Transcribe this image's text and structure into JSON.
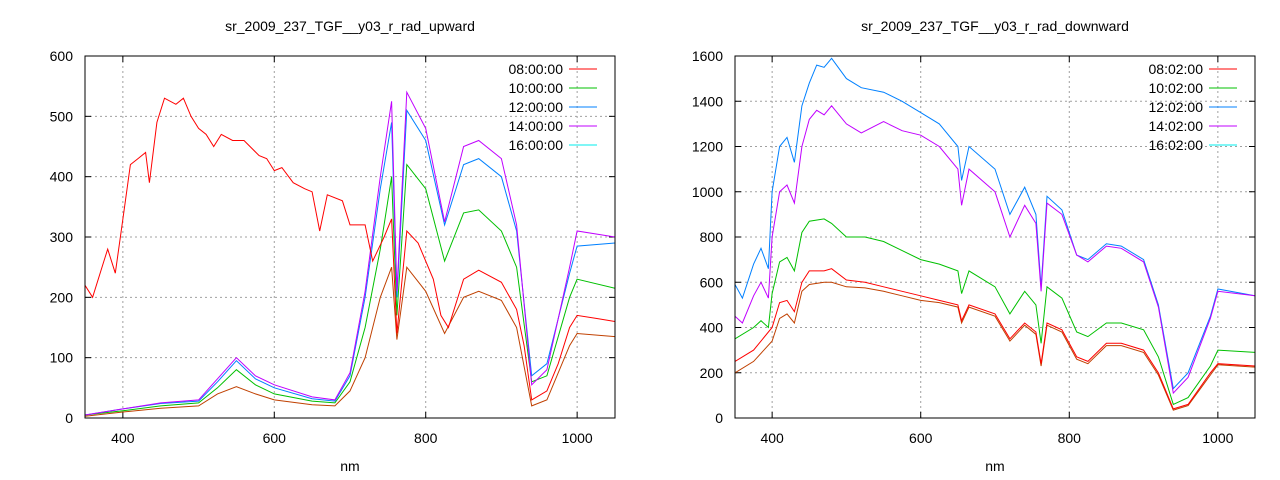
{
  "chart_data": [
    {
      "type": "line",
      "title": "sr_2009_237_TGF__y03_r_rad_upward",
      "xlabel": "nm",
      "ylabel": "",
      "xlim": [
        350,
        1050
      ],
      "ylim": [
        0,
        600
      ],
      "xticks": [
        400,
        600,
        800,
        1000
      ],
      "yticks": [
        0,
        100,
        200,
        300,
        400,
        500,
        600
      ],
      "grid": true,
      "legend_position": "top-right",
      "series": [
        {
          "name": "08:00:00",
          "legend_color": "#ff0000",
          "line_color": "#ff0000",
          "x": [
            350,
            360,
            375,
            380,
            390,
            400,
            410,
            420,
            430,
            435,
            445,
            455,
            470,
            480,
            490,
            500,
            510,
            520,
            530,
            545,
            560,
            580,
            590,
            600,
            610,
            625,
            640,
            650,
            660,
            670,
            690,
            700,
            720,
            730,
            745,
            755,
            762,
            765,
            775,
            790,
            810,
            820,
            830,
            850,
            870,
            900,
            920,
            930,
            940,
            960,
            975,
            990,
            1000,
            1025,
            1050
          ],
          "y": [
            220,
            200,
            260,
            280,
            240,
            330,
            420,
            430,
            440,
            390,
            490,
            530,
            520,
            530,
            500,
            480,
            470,
            450,
            470,
            460,
            460,
            435,
            430,
            410,
            415,
            390,
            380,
            375,
            310,
            370,
            360,
            320,
            320,
            260,
            300,
            330,
            140,
            180,
            310,
            290,
            230,
            170,
            150,
            230,
            245,
            225,
            180,
            120,
            30,
            45,
            90,
            150,
            170,
            165,
            160
          ]
        },
        {
          "name": "10:00:00",
          "legend_color": "#00c000",
          "line_color": "#00c000",
          "x": [
            350,
            400,
            450,
            500,
            525,
            550,
            575,
            600,
            650,
            680,
            700,
            720,
            740,
            755,
            762,
            775,
            800,
            825,
            850,
            870,
            900,
            920,
            940,
            960,
            990,
            1000,
            1050
          ],
          "y": [
            5,
            12,
            20,
            25,
            50,
            80,
            55,
            40,
            28,
            25,
            60,
            150,
            280,
            400,
            170,
            420,
            380,
            260,
            340,
            345,
            310,
            250,
            60,
            70,
            200,
            230,
            215
          ]
        },
        {
          "name": "12:00:00",
          "legend_color": "#0080ff",
          "line_color": "#0080ff",
          "x": [
            350,
            400,
            450,
            500,
            525,
            550,
            575,
            600,
            650,
            680,
            700,
            720,
            740,
            755,
            762,
            775,
            800,
            825,
            850,
            870,
            900,
            920,
            940,
            960,
            990,
            1000,
            1050
          ],
          "y": [
            5,
            15,
            24,
            28,
            60,
            95,
            65,
            50,
            32,
            28,
            70,
            200,
            380,
            490,
            200,
            510,
            460,
            320,
            420,
            430,
            400,
            310,
            70,
            90,
            240,
            285,
            290
          ]
        },
        {
          "name": "14:00:00",
          "legend_color": "#c000ff",
          "line_color": "#c000ff",
          "x": [
            350,
            400,
            450,
            500,
            525,
            550,
            575,
            600,
            650,
            680,
            700,
            720,
            740,
            755,
            762,
            775,
            800,
            825,
            850,
            870,
            900,
            920,
            940,
            960,
            990,
            1000,
            1050
          ],
          "y": [
            5,
            15,
            25,
            30,
            65,
            100,
            70,
            55,
            35,
            30,
            75,
            210,
            400,
            525,
            210,
            540,
            480,
            325,
            450,
            460,
            430,
            320,
            55,
            80,
            250,
            310,
            300
          ]
        },
        {
          "name": "16:00:00",
          "legend_color": "#00eeee",
          "line_color": "#c04000",
          "x": [
            350,
            400,
            450,
            500,
            525,
            550,
            575,
            600,
            650,
            680,
            700,
            720,
            740,
            755,
            762,
            775,
            800,
            825,
            850,
            870,
            900,
            920,
            940,
            960,
            990,
            1000,
            1050
          ],
          "y": [
            3,
            10,
            16,
            20,
            40,
            52,
            40,
            30,
            22,
            20,
            45,
            100,
            200,
            250,
            130,
            250,
            210,
            140,
            200,
            210,
            195,
            150,
            20,
            30,
            120,
            140,
            135
          ]
        }
      ]
    },
    {
      "type": "line",
      "title": "sr_2009_237_TGF__y03_r_rad_downward",
      "xlabel": "nm",
      "ylabel": "",
      "xlim": [
        350,
        1050
      ],
      "ylim": [
        0,
        1600
      ],
      "xticks": [
        400,
        600,
        800,
        1000
      ],
      "yticks": [
        0,
        200,
        400,
        600,
        800,
        1000,
        1200,
        1400,
        1600
      ],
      "grid": true,
      "legend_position": "top-right",
      "series": [
        {
          "name": "08:02:00",
          "legend_color": "#ff0000",
          "line_color": "#ff0000",
          "x": [
            350,
            375,
            400,
            410,
            420,
            430,
            440,
            450,
            470,
            480,
            500,
            525,
            550,
            575,
            600,
            625,
            650,
            655,
            665,
            700,
            720,
            740,
            755,
            762,
            770,
            790,
            810,
            825,
            850,
            870,
            900,
            920,
            940,
            960,
            990,
            1000,
            1050
          ],
          "y": [
            250,
            300,
            400,
            510,
            520,
            470,
            600,
            650,
            650,
            660,
            610,
            600,
            580,
            560,
            540,
            520,
            500,
            430,
            500,
            460,
            350,
            420,
            380,
            240,
            420,
            390,
            270,
            250,
            330,
            330,
            300,
            200,
            40,
            60,
            200,
            240,
            230
          ]
        },
        {
          "name": "10:02:00",
          "legend_color": "#00c000",
          "line_color": "#00c000",
          "x": [
            350,
            375,
            385,
            395,
            400,
            410,
            420,
            430,
            440,
            450,
            470,
            480,
            500,
            525,
            550,
            575,
            600,
            625,
            650,
            655,
            665,
            700,
            720,
            740,
            755,
            762,
            770,
            790,
            810,
            825,
            850,
            870,
            900,
            920,
            940,
            960,
            990,
            1000,
            1050
          ],
          "y": [
            350,
            400,
            430,
            400,
            550,
            690,
            710,
            650,
            820,
            870,
            880,
            860,
            800,
            800,
            780,
            740,
            700,
            680,
            650,
            550,
            650,
            580,
            460,
            560,
            500,
            330,
            580,
            530,
            380,
            360,
            420,
            420,
            390,
            270,
            60,
            90,
            230,
            300,
            290
          ]
        },
        {
          "name": "12:02:00",
          "legend_color": "#0080ff",
          "line_color": "#0080ff",
          "x": [
            350,
            360,
            375,
            385,
            395,
            400,
            410,
            420,
            430,
            440,
            450,
            460,
            470,
            480,
            500,
            520,
            550,
            575,
            600,
            625,
            650,
            655,
            665,
            700,
            720,
            740,
            755,
            762,
            770,
            790,
            810,
            825,
            850,
            870,
            900,
            920,
            940,
            960,
            990,
            1000,
            1050
          ],
          "y": [
            590,
            530,
            680,
            750,
            660,
            1000,
            1200,
            1240,
            1130,
            1380,
            1480,
            1560,
            1550,
            1590,
            1500,
            1460,
            1440,
            1400,
            1350,
            1300,
            1200,
            1050,
            1200,
            1100,
            900,
            1020,
            900,
            580,
            980,
            920,
            720,
            700,
            770,
            760,
            700,
            500,
            130,
            200,
            450,
            570,
            540
          ]
        },
        {
          "name": "14:02:00",
          "legend_color": "#c000ff",
          "line_color": "#c000ff",
          "x": [
            350,
            360,
            375,
            385,
            395,
            400,
            410,
            420,
            430,
            440,
            450,
            460,
            470,
            480,
            500,
            520,
            550,
            575,
            600,
            625,
            650,
            655,
            665,
            700,
            720,
            740,
            755,
            762,
            770,
            790,
            810,
            825,
            850,
            870,
            900,
            920,
            940,
            960,
            990,
            1000,
            1050
          ],
          "y": [
            450,
            420,
            540,
            600,
            530,
            800,
            1000,
            1030,
            950,
            1200,
            1320,
            1360,
            1340,
            1380,
            1300,
            1260,
            1310,
            1270,
            1250,
            1200,
            1100,
            940,
            1100,
            1000,
            800,
            940,
            860,
            560,
            950,
            900,
            720,
            690,
            760,
            750,
            690,
            490,
            110,
            180,
            440,
            560,
            540
          ]
        },
        {
          "name": "16:02:00",
          "legend_color": "#00eeee",
          "line_color": "#c04000",
          "x": [
            350,
            375,
            400,
            410,
            420,
            430,
            440,
            450,
            470,
            480,
            500,
            525,
            550,
            575,
            600,
            625,
            650,
            655,
            665,
            700,
            720,
            740,
            755,
            762,
            770,
            790,
            810,
            825,
            850,
            870,
            900,
            920,
            940,
            960,
            990,
            1000,
            1050
          ],
          "y": [
            200,
            250,
            340,
            440,
            460,
            420,
            560,
            590,
            600,
            600,
            580,
            575,
            560,
            540,
            520,
            510,
            490,
            420,
            490,
            450,
            340,
            410,
            370,
            230,
            410,
            380,
            260,
            240,
            320,
            320,
            290,
            190,
            35,
            55,
            190,
            235,
            225
          ]
        }
      ]
    }
  ]
}
